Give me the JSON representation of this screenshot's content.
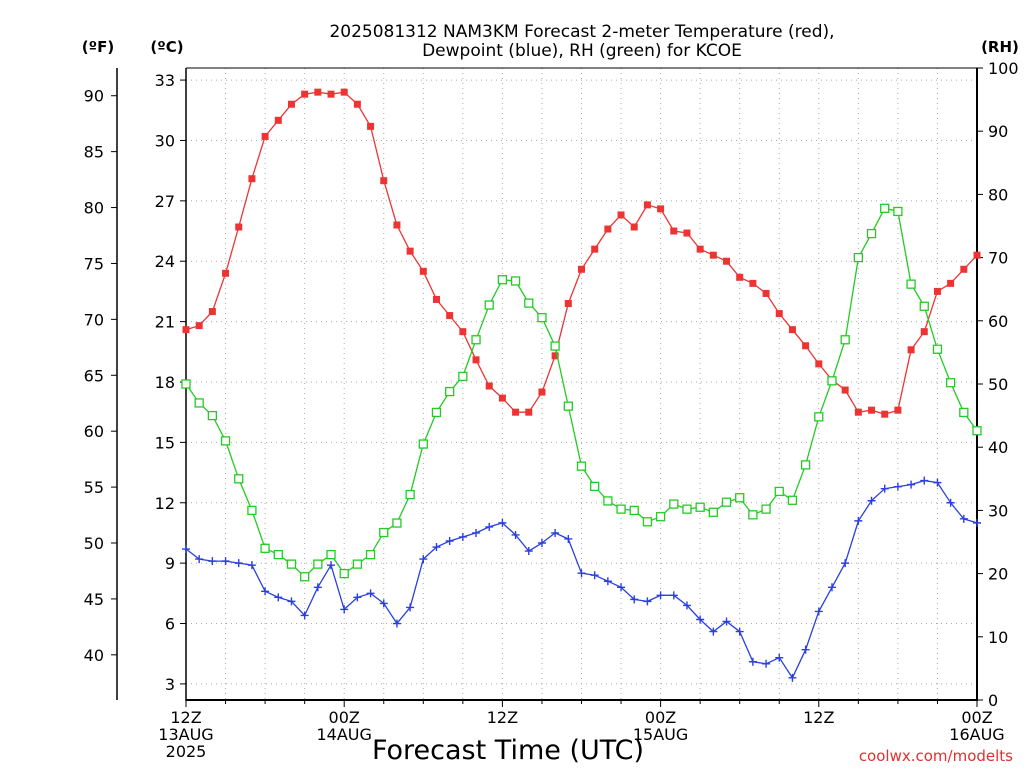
{
  "title_line1": "2025081312 NAM3KM Forecast 2-meter Temperature (red),",
  "title_line2": "Dewpoint (blue), RH (green) for KCOE",
  "unit_f": "(ºF)",
  "unit_c": "(ºC)",
  "unit_rh": "(RH)",
  "xlabel": "Forecast Time (UTC)",
  "credit": "coolwx.com/modelts",
  "colors": {
    "temperature": "#ee3333",
    "dewpoint": "#2a3fe0",
    "rh": "#22cc22"
  },
  "chart_data": {
    "type": "line",
    "x_unit": "forecast hour from 2025-08-13 12Z",
    "x_range": [
      0,
      60
    ],
    "ylim_c": [
      2.2,
      33.6
    ],
    "ylim_rh": [
      0,
      100
    ],
    "y_ticks_c": [
      3,
      6,
      9,
      12,
      15,
      18,
      21,
      24,
      27,
      30,
      33
    ],
    "y_ticks_f": [
      40,
      45,
      50,
      55,
      60,
      65,
      70,
      75,
      80,
      85,
      90
    ],
    "y_ticks_rh": [
      0,
      10,
      20,
      30,
      40,
      50,
      60,
      70,
      80,
      90,
      100
    ],
    "x_ticks": [
      {
        "x": 0,
        "lines": [
          "12Z",
          "13AUG",
          "2025"
        ]
      },
      {
        "x": 12,
        "lines": [
          "00Z",
          "14AUG"
        ]
      },
      {
        "x": 24,
        "lines": [
          "12Z"
        ]
      },
      {
        "x": 36,
        "lines": [
          "00Z",
          "15AUG"
        ]
      },
      {
        "x": 48,
        "lines": [
          "12Z"
        ]
      },
      {
        "x": 60,
        "lines": [
          "00Z",
          "16AUG"
        ]
      }
    ],
    "grid": true,
    "series": [
      {
        "name": "Temperature",
        "axis": "celsius",
        "marker": "filled-square",
        "x": [
          0,
          1,
          2,
          3,
          4,
          5,
          6,
          7,
          8,
          9,
          10,
          11,
          12,
          13,
          14,
          15,
          16,
          17,
          18,
          19,
          20,
          21,
          22,
          23,
          24,
          25,
          26,
          27,
          28,
          29,
          30,
          31,
          32,
          33,
          34,
          35,
          36,
          37,
          38,
          39,
          40,
          41,
          42,
          43,
          44,
          45,
          46,
          47,
          48,
          49,
          50,
          51,
          52,
          53,
          54,
          55,
          56,
          57,
          58,
          59,
          60
        ],
        "values": [
          20.6,
          20.8,
          21.5,
          23.4,
          25.7,
          28.1,
          30.2,
          31.0,
          31.8,
          32.3,
          32.4,
          32.3,
          32.4,
          31.8,
          30.7,
          28.0,
          25.8,
          24.5,
          23.5,
          22.1,
          21.3,
          20.5,
          19.1,
          17.8,
          17.2,
          16.5,
          16.5,
          17.5,
          19.3,
          21.9,
          23.6,
          24.6,
          25.6,
          26.3,
          25.7,
          26.8,
          26.6,
          25.5,
          25.4,
          24.6,
          24.3,
          24.0,
          23.2,
          22.9,
          22.4,
          21.4,
          20.6,
          19.8,
          18.9,
          18.1,
          17.6,
          16.5,
          16.6,
          16.4,
          16.6,
          19.6,
          20.5,
          22.5,
          22.9,
          23.6,
          24.3
        ]
      },
      {
        "name": "Dewpoint",
        "axis": "celsius",
        "marker": "plus",
        "x": [
          0,
          1,
          2,
          3,
          4,
          5,
          6,
          7,
          8,
          9,
          10,
          11,
          12,
          13,
          14,
          15,
          16,
          17,
          18,
          19,
          20,
          21,
          22,
          23,
          24,
          25,
          26,
          27,
          28,
          29,
          30,
          31,
          32,
          33,
          34,
          35,
          36,
          37,
          38,
          39,
          40,
          41,
          42,
          43,
          44,
          45,
          46,
          47,
          48,
          49,
          50,
          51,
          52,
          53,
          54,
          55,
          56,
          57,
          58,
          59,
          60
        ],
        "values": [
          9.7,
          9.2,
          9.1,
          9.1,
          9.0,
          8.9,
          7.6,
          7.3,
          7.1,
          6.4,
          7.8,
          8.9,
          6.7,
          7.3,
          7.5,
          7.0,
          6.0,
          6.8,
          9.2,
          9.8,
          10.1,
          10.3,
          10.5,
          10.8,
          11.0,
          10.4,
          9.6,
          10.0,
          10.5,
          10.2,
          8.5,
          8.4,
          8.1,
          7.8,
          7.2,
          7.1,
          7.4,
          7.4,
          6.9,
          6.2,
          5.6,
          6.1,
          5.6,
          4.1,
          4.0,
          4.3,
          3.3,
          4.7,
          6.6,
          7.8,
          9.0,
          11.1,
          12.1,
          12.7,
          12.8,
          12.9,
          13.1,
          13.0,
          12.0,
          11.2,
          11.0
        ]
      },
      {
        "name": "RH",
        "axis": "rh",
        "marker": "open-square",
        "x": [
          0,
          1,
          2,
          3,
          4,
          5,
          6,
          7,
          8,
          9,
          10,
          11,
          12,
          13,
          14,
          15,
          16,
          17,
          18,
          19,
          20,
          21,
          22,
          23,
          24,
          25,
          26,
          27,
          28,
          29,
          30,
          31,
          32,
          33,
          34,
          35,
          36,
          37,
          38,
          39,
          40,
          41,
          42,
          43,
          44,
          45,
          46,
          47,
          48,
          49,
          50,
          51,
          52,
          53,
          54,
          55,
          56,
          57,
          58,
          59,
          60
        ],
        "values": [
          50,
          47,
          45,
          41,
          35,
          30,
          24,
          23,
          21.5,
          19.5,
          21.5,
          23,
          20,
          21.5,
          23,
          26.5,
          28,
          32.5,
          40.5,
          45.5,
          48.8,
          51.2,
          57,
          62.5,
          66.5,
          66.3,
          62.8,
          60.5,
          56,
          46.5,
          37,
          33.8,
          31.5,
          30.2,
          30,
          28.2,
          29,
          31,
          30.2,
          30.5,
          29.7,
          31.3,
          32,
          29.3,
          30.2,
          33,
          31.6,
          37.2,
          44.8,
          50.5,
          57,
          70,
          73.8,
          77.8,
          77.3,
          65.8,
          62.3,
          55.5,
          50.2,
          45.5,
          42.6
        ]
      }
    ]
  }
}
